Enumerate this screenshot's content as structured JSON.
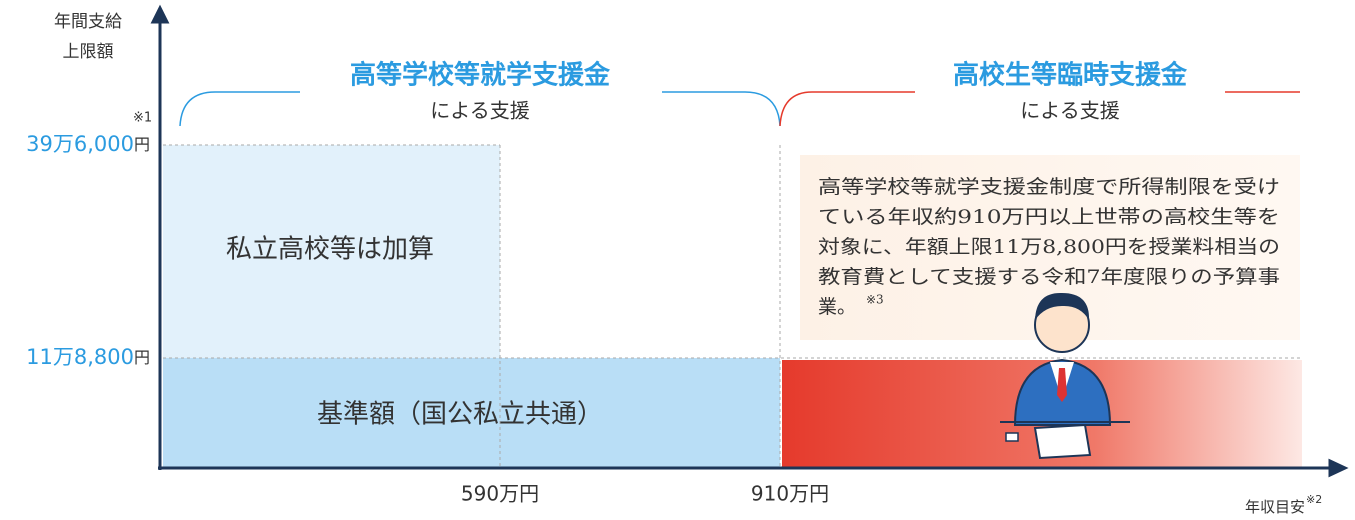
{
  "y_axis": {
    "label_lines": [
      "年間支給",
      "上限額"
    ],
    "note": "※1"
  },
  "y_labels": [
    {
      "amount": "39万6,000",
      "unit": "円"
    },
    {
      "amount": "11万8,800",
      "unit": "円"
    }
  ],
  "x_labels": [
    "590万円",
    "910万円"
  ],
  "x_axis": {
    "label": "年収目安",
    "note": "※2"
  },
  "sections": [
    {
      "title": "高等学校等就学支援金",
      "subtitle": "による支援"
    },
    {
      "title": "高校生等臨時支援金",
      "subtitle": "による支援"
    }
  ],
  "regions": {
    "private": "私立高校等は加算",
    "base": "基準額（国公私立共通）"
  },
  "callout": {
    "lines": [
      "高等学校等就学支援金制度で所得制限を受け",
      "ている年収約910万円以上世帯の高校生等を",
      "対象に、年額上限11万8,800円を授業料相当の",
      "教育費として支援する令和7年度限りの予算事",
      "業。"
    ],
    "note": "※3"
  }
}
